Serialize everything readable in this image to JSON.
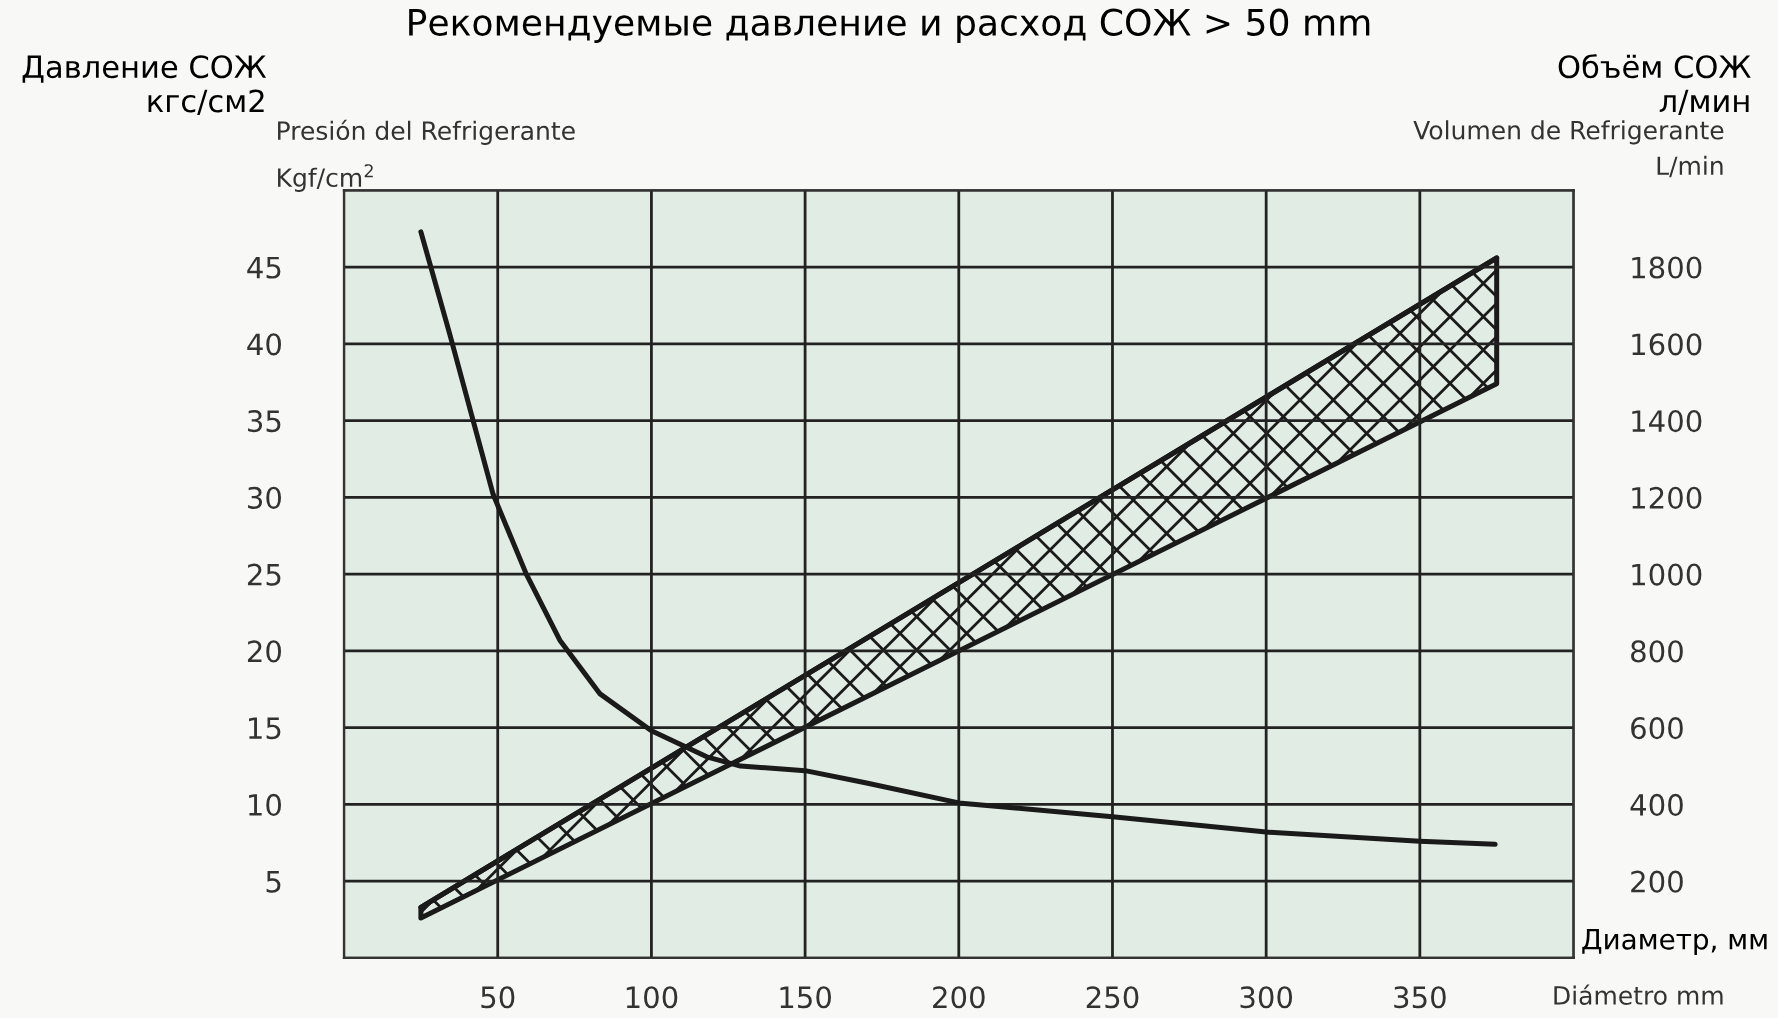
{
  "chart_data": {
    "type": "line",
    "title": "Рекомендуемые давление и расход СОЖ > 50 mm",
    "ylabel": "Давление СОЖ\nкгс/см2",
    "y2label": "Объём СОЖ\nл/мин",
    "xlabel": "Диаметр, мм",
    "annotations": [
      "Presión del Refrigerante",
      "Kgf/cm$^{2}$",
      "Volumen de Refrigerante",
      "L/min",
      "Diámetro mm"
    ],
    "xlim": [
      0,
      400
    ],
    "xticks": [
      50,
      100,
      150,
      200,
      250,
      300,
      350
    ],
    "ylim": [
      0,
      50
    ],
    "yticks": [
      5,
      10,
      15,
      20,
      25,
      30,
      35,
      40,
      45
    ],
    "y2lim": [
      0,
      2000
    ],
    "y2ticks": [
      200,
      400,
      600,
      800,
      1000,
      1200,
      1400,
      1600,
      1800
    ],
    "grid": true,
    "legend": false,
    "series": [
      {
        "color": "#1a1a1a",
        "x": [
          25,
          34.3,
          42,
          48.5,
          59.3,
          70.2,
          83.3,
          100,
          118,
          129,
          150,
          170,
          200,
          250,
          300,
          350,
          374.5
        ],
        "values": [
          47.3,
          40.7,
          35,
          30.2,
          25,
          20.7,
          17.2,
          14.8,
          13.1,
          12.5,
          12.2,
          11.4,
          10.1,
          9.2,
          8.2,
          7.6,
          7.4
        ]
      },
      {
        "type": "line",
        "axis": "y2",
        "color": "#1a1a1a",
        "x": [
          25,
          375
        ],
        "values": [
          132,
          1824
        ],
        "lower": [
          104,
          1496
        ],
        "upper": [
          132,
          1824
        ]
      }
    ]
  }
}
